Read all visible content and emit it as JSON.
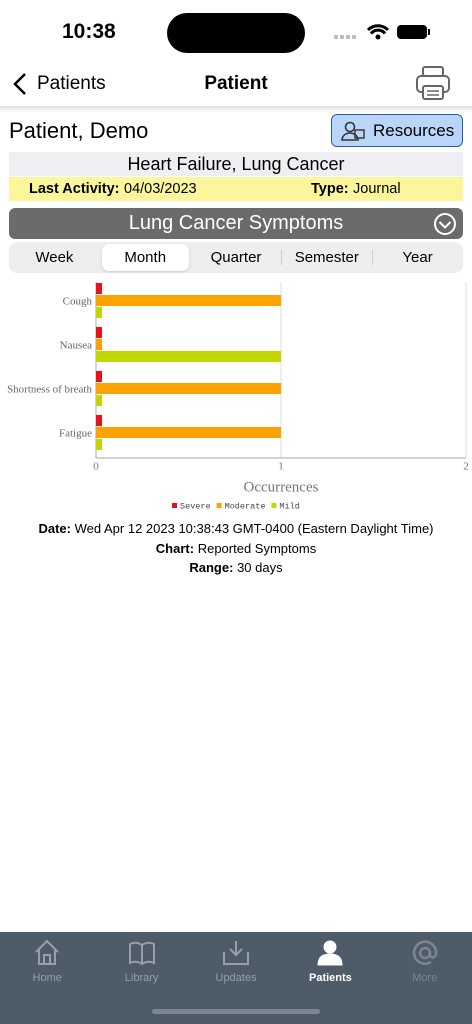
{
  "status_bar": {
    "time": "10:38"
  },
  "nav": {
    "back": "Patients",
    "title": "Patient"
  },
  "patient": {
    "name": "Patient, Demo",
    "resources": "Resources",
    "conditions": "Heart Failure, Lung Cancer",
    "last_activity_label": "Last Activity:",
    "last_activity": "04/03/2023",
    "type_label": "Type:",
    "type": "Journal"
  },
  "section": {
    "title": "Lung Cancer Symptoms",
    "periods": [
      "Week",
      "Month",
      "Quarter",
      "Semester",
      "Year"
    ],
    "selected": 1
  },
  "chart_data": {
    "type": "hbar",
    "x_label": "Occurrences",
    "categories": [
      "Cough",
      "Nausea",
      "Shortness of breath",
      "Fatigue"
    ],
    "series": [
      {
        "name": "Severe",
        "color": "#e8121a",
        "values": [
          0,
          0,
          0,
          0
        ]
      },
      {
        "name": "Moderate",
        "color": "#fca300",
        "values": [
          1,
          0,
          1,
          1
        ]
      },
      {
        "name": "Mild",
        "color": "#c3d600",
        "values": [
          0,
          1,
          0,
          0
        ]
      }
    ],
    "xlim": [
      0,
      2
    ],
    "xticks": [
      0,
      1,
      2
    ],
    "grid": true
  },
  "info": [
    {
      "label": "Date:",
      "value": "Wed Apr 12 2023 10:38:43 GMT-0400 (Eastern Daylight Time)"
    },
    {
      "label": "Chart:",
      "value": "Reported Symptoms"
    },
    {
      "label": "Range:",
      "value": "30 days"
    }
  ],
  "tab_bar": {
    "items": [
      "Home",
      "Library",
      "Updates",
      "Patients",
      "More"
    ],
    "selected": 3
  }
}
